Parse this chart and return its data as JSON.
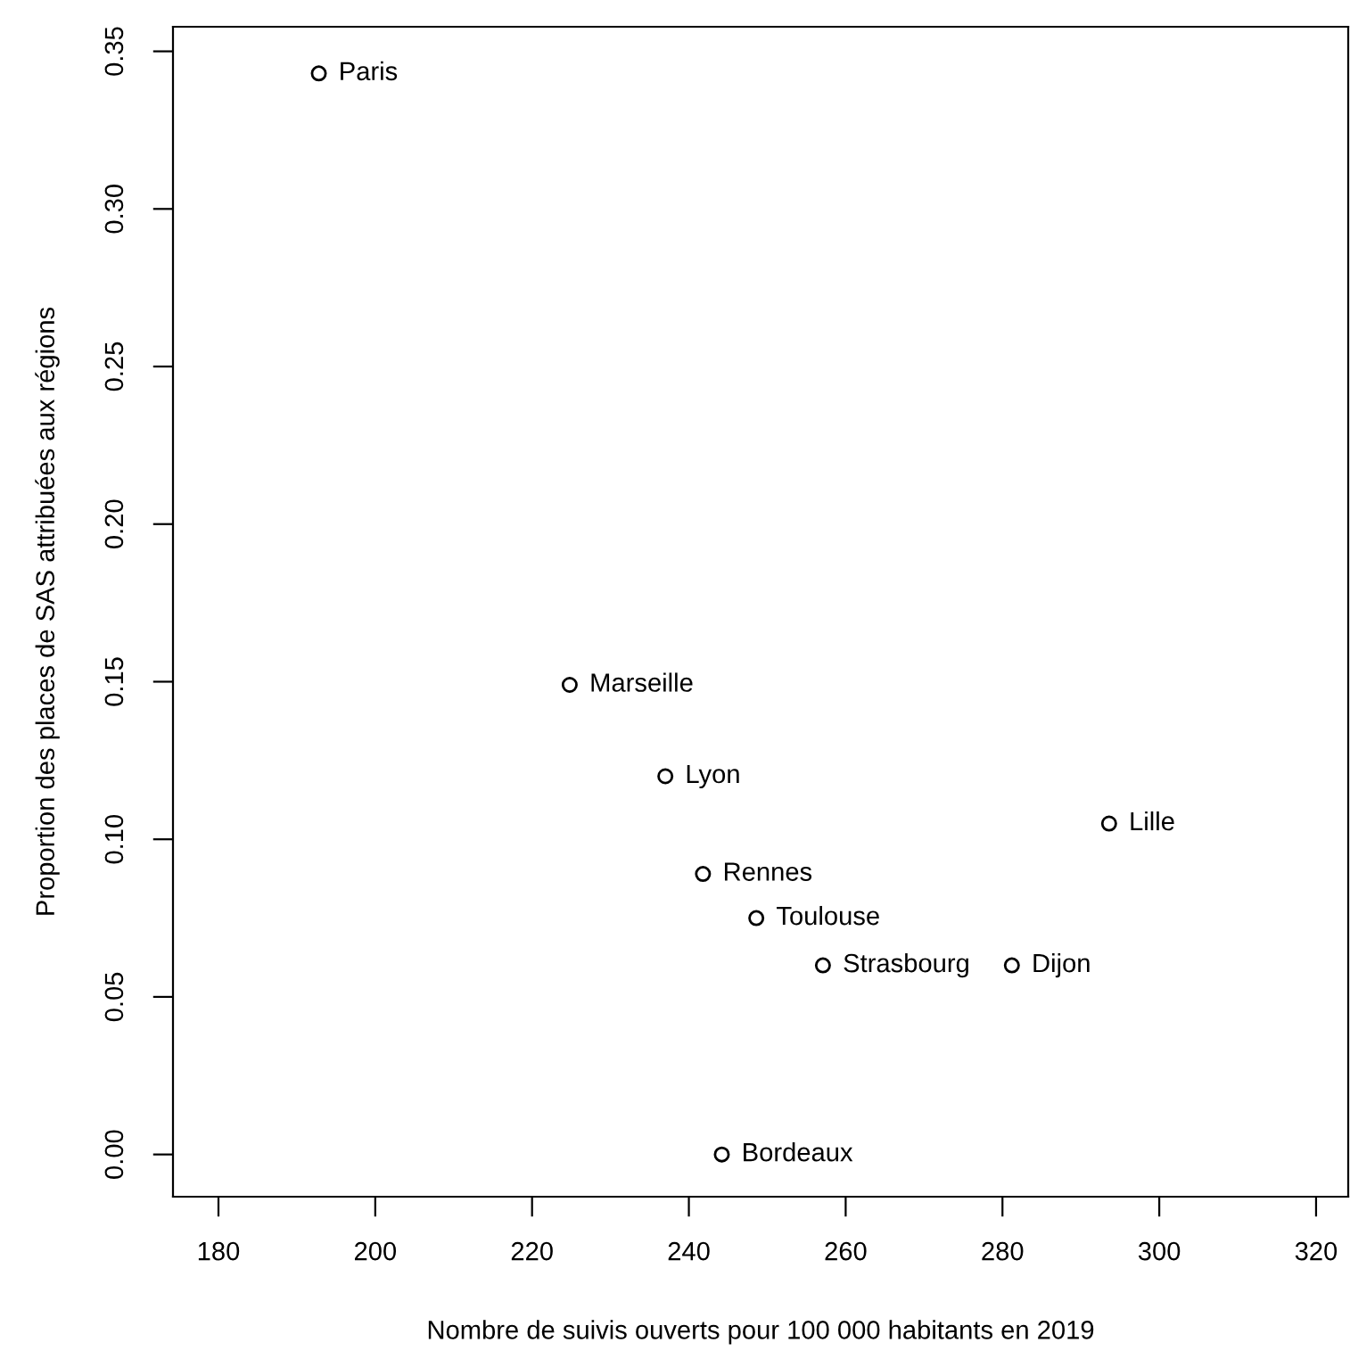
{
  "chart_data": {
    "type": "scatter",
    "xlabel": "Nombre de suivis ouverts pour 100 000 habitants en 2019",
    "ylabel": "Proportion des places de SAS attribuées aux régions",
    "series": [
      {
        "color": "#000000",
        "x": [
          192.8,
          224.8,
          237.0,
          241.8,
          248.6,
          257.1,
          281.2,
          293.6,
          244.2
        ],
        "values": [
          0.343,
          0.149,
          0.12,
          0.089,
          0.075,
          0.06,
          0.06,
          0.105,
          0.0
        ]
      }
    ],
    "annotations": [
      {
        "text": "Paris",
        "x": 192.8,
        "y": 0.343
      },
      {
        "text": "Marseille",
        "x": 224.8,
        "y": 0.149
      },
      {
        "text": "Lyon",
        "x": 237.0,
        "y": 0.12
      },
      {
        "text": "Rennes",
        "x": 241.8,
        "y": 0.089
      },
      {
        "text": "Toulouse",
        "x": 248.6,
        "y": 0.075
      },
      {
        "text": "Strasbourg",
        "x": 257.1,
        "y": 0.06
      },
      {
        "text": "Dijon",
        "x": 281.2,
        "y": 0.06
      },
      {
        "text": "Lille",
        "x": 293.6,
        "y": 0.105
      },
      {
        "text": "Bordeaux",
        "x": 244.2,
        "y": 0.0
      }
    ],
    "marker": "circle",
    "xlim": [
      174.2,
      324.1
    ],
    "ylim": [
      -0.0134,
      0.3578
    ],
    "xticks": [
      180,
      200,
      220,
      240,
      260,
      280,
      300,
      320
    ],
    "yticks": [
      {
        "value": 0,
        "label": "0.00"
      },
      {
        "value": 0.05,
        "label": "0.05"
      },
      {
        "value": 0.1,
        "label": "0.10"
      },
      {
        "value": 0.15,
        "label": "0.15"
      },
      {
        "value": 0.2,
        "label": "0.20"
      },
      {
        "value": 0.25,
        "label": "0.25"
      },
      {
        "value": 0.3,
        "label": "0.30"
      },
      {
        "value": 0.35,
        "label": "0.35"
      }
    ],
    "grid": false,
    "legend": false
  }
}
